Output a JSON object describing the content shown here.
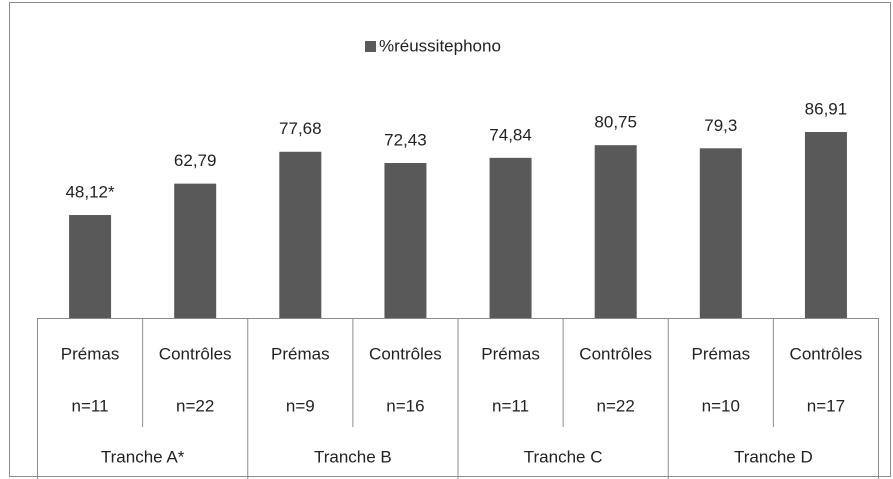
{
  "chart_data": {
    "type": "bar",
    "categories": [
      "Prémas",
      "Contrôles",
      "Prémas",
      "Contrôles",
      "Prémas",
      "Contrôles",
      "Prémas",
      "Contrôles"
    ],
    "sublabels": [
      "n=11",
      "n=22",
      "n=9",
      "n=16",
      "n=11",
      "n=22",
      "n=10",
      "n=17"
    ],
    "groups": [
      "Tranche A*",
      "Tranche B",
      "Tranche C",
      "Tranche D"
    ],
    "series": [
      {
        "name": "%réussitephono",
        "color": "#595959",
        "values": [
          48.12,
          62.79,
          77.68,
          72.43,
          74.84,
          80.75,
          79.3,
          86.91
        ],
        "value_labels": [
          "48,12*",
          "62,79",
          "77,68",
          "72,43",
          "74,84",
          "80,75",
          "79,3",
          "86,91"
        ]
      }
    ],
    "ylim": [
      0,
      100
    ],
    "legend": "top"
  }
}
